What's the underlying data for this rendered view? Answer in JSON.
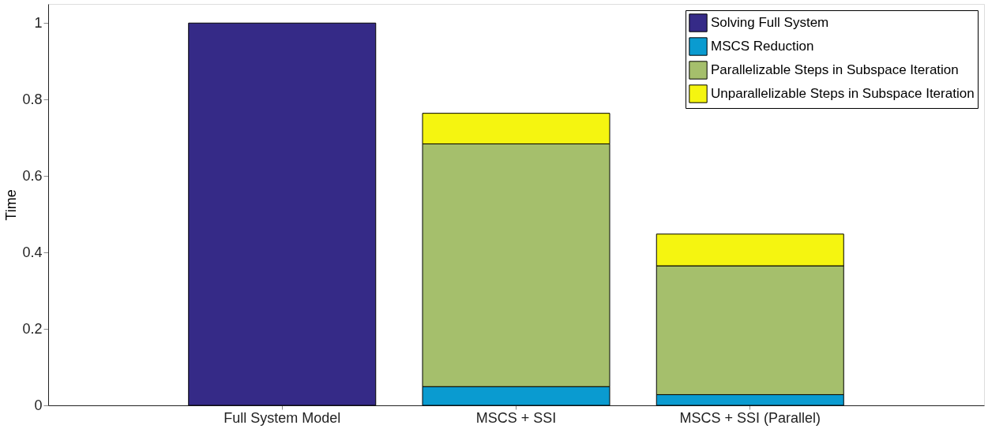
{
  "chart_data": {
    "type": "bar",
    "stacked": true,
    "ylabel": "Time",
    "categories": [
      "Full System Model",
      "MSCS + SSI",
      "MSCS + SSI (Parallel)"
    ],
    "series": [
      {
        "name": "Solving Full System",
        "color": "#352a87",
        "values": [
          1.0,
          null,
          null
        ]
      },
      {
        "name": "MSCS Reduction",
        "color": "#0a9bd0",
        "values": [
          null,
          0.049,
          0.028
        ]
      },
      {
        "name": "Parallelizable Steps in Subspace Iteration",
        "color": "#a5bf6c",
        "values": [
          null,
          0.635,
          0.337
        ]
      },
      {
        "name": "Unparallelizable Steps in Subspace Iteration",
        "color": "#f5f510",
        "values": [
          null,
          0.08,
          0.083
        ]
      }
    ],
    "ylim": [
      0,
      1.05
    ],
    "yticks": [
      0,
      0.2,
      0.4,
      0.6,
      0.8,
      1
    ],
    "grid": false,
    "legend": "top right"
  }
}
